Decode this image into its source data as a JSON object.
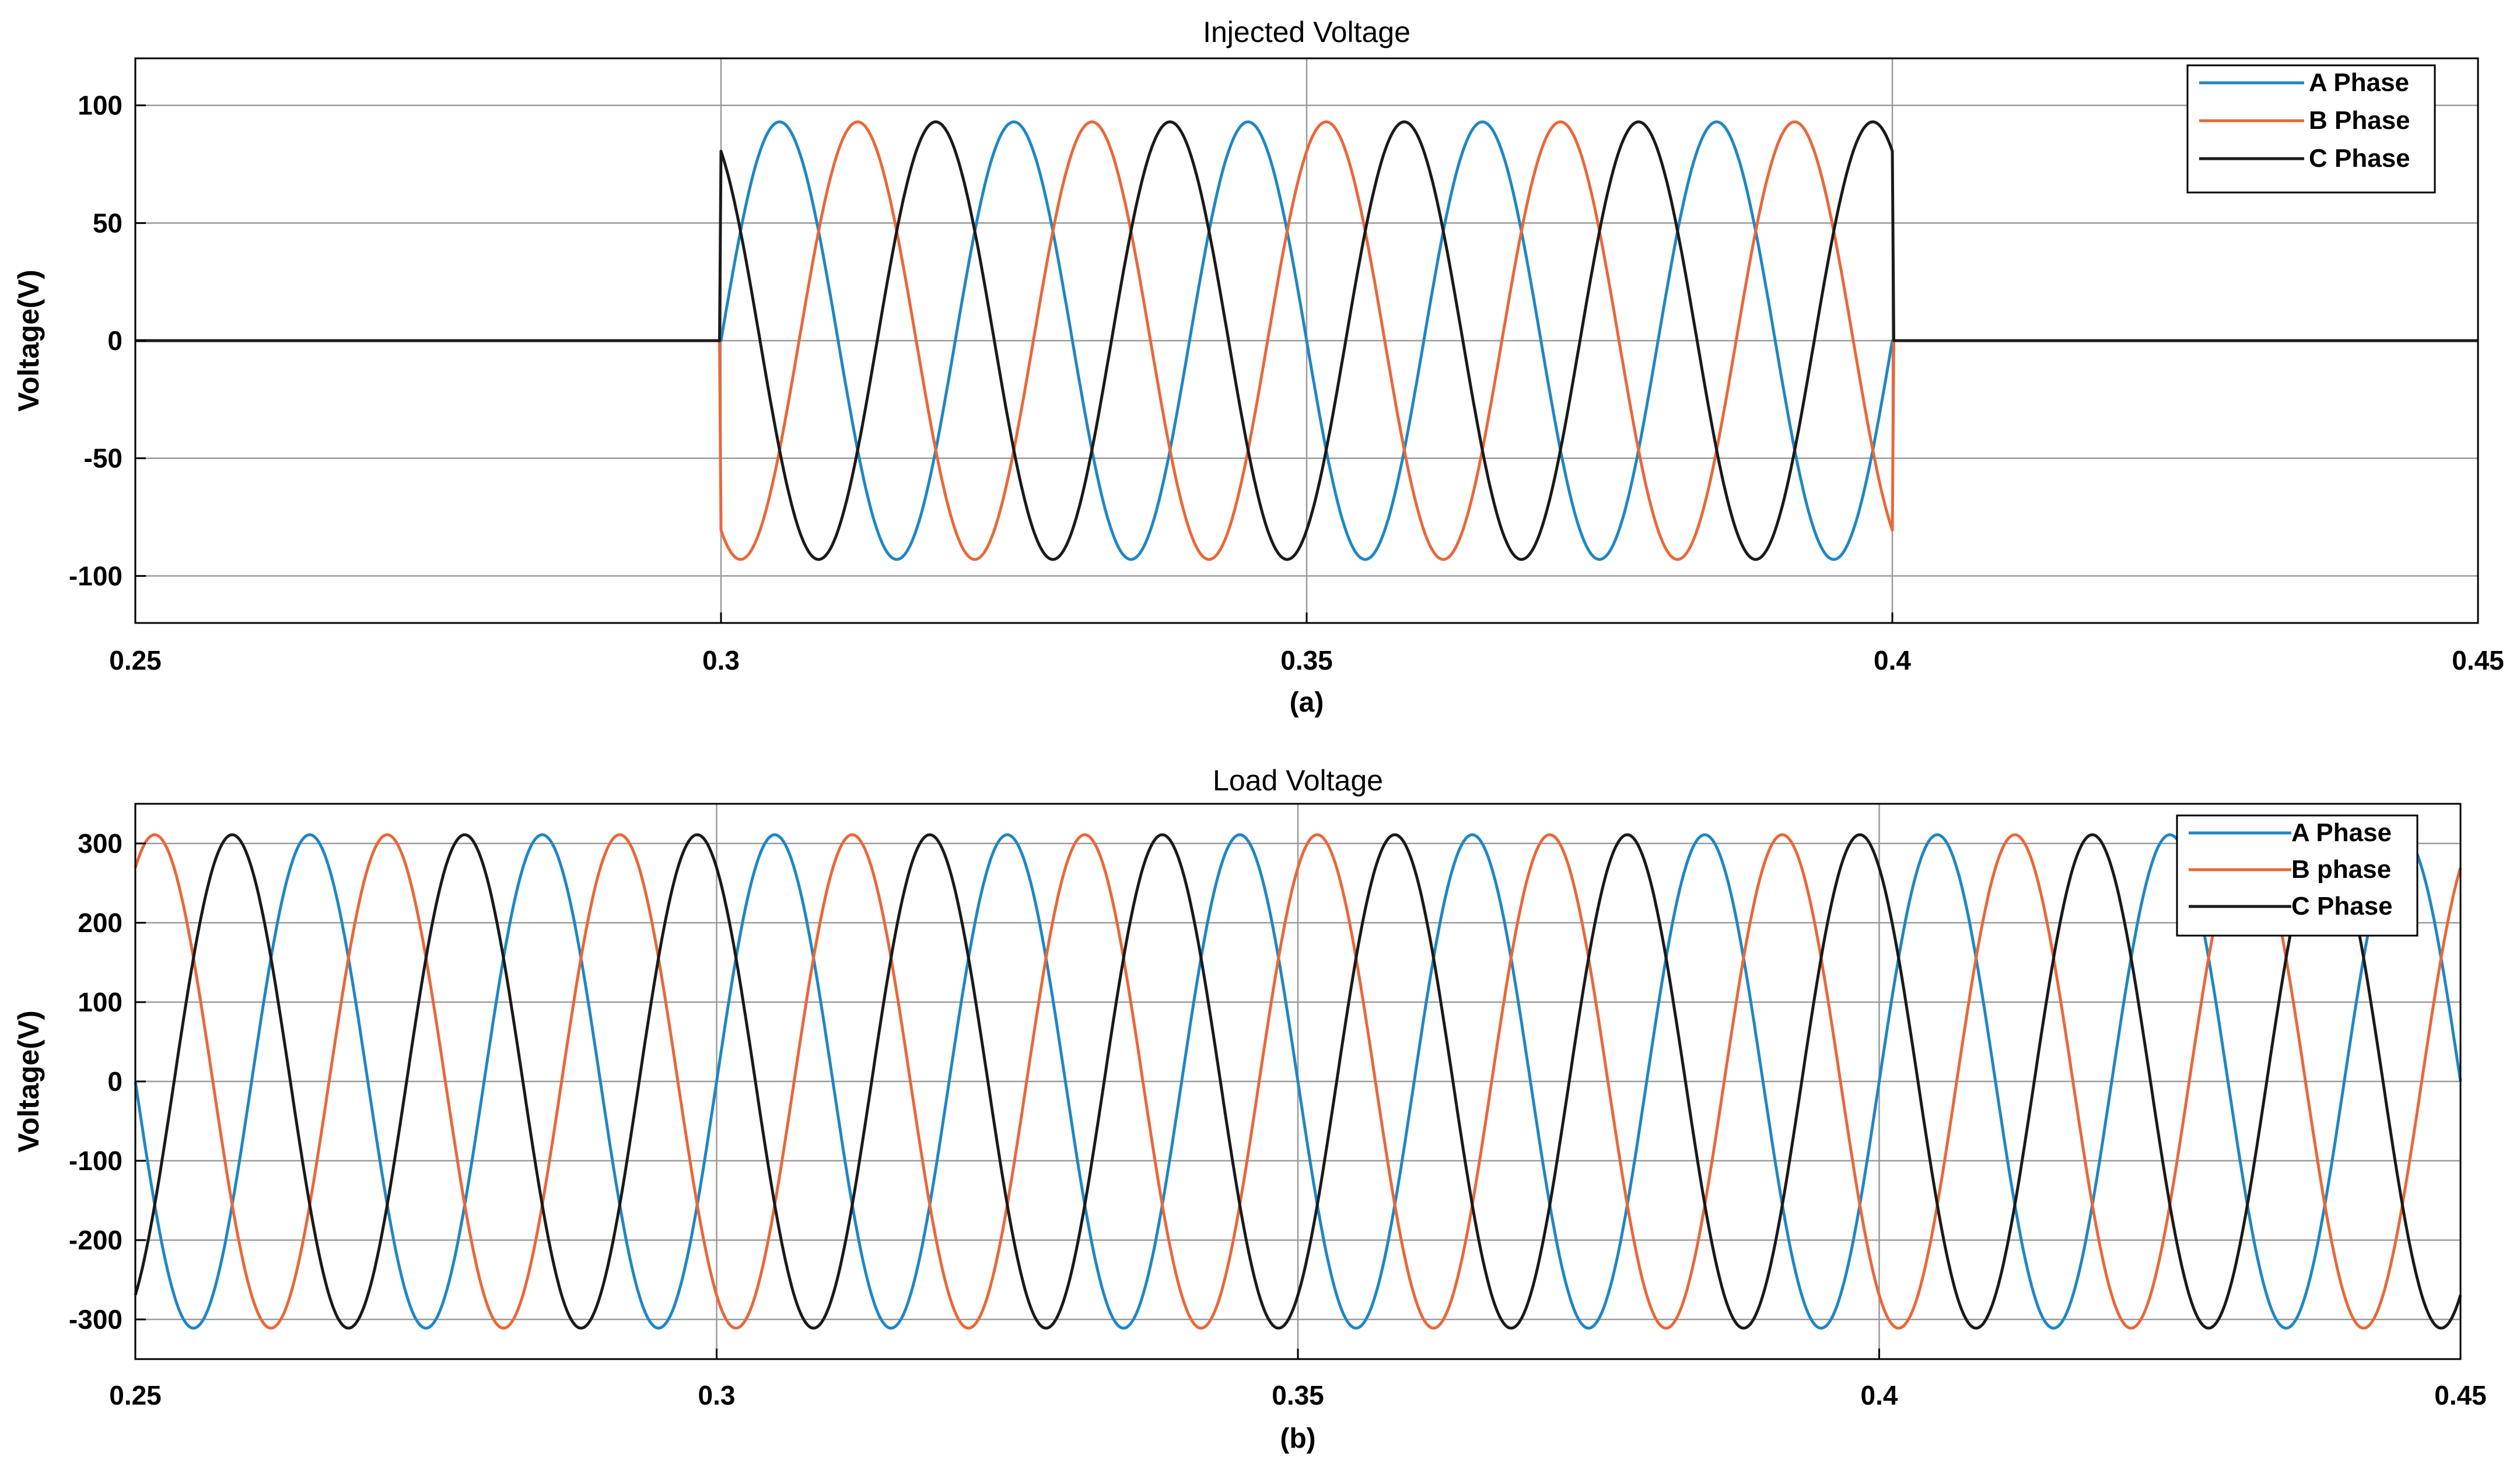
{
  "colors": {
    "a": "#1f86c5",
    "b": "#e8683a",
    "c": "#1a1a1a",
    "grid": "#9a9a9a",
    "axis": "#000000"
  },
  "chart_data": [
    {
      "type": "line",
      "title": "Injected Voltage",
      "caption": "(a)",
      "xlabel": "",
      "ylabel": "Voltage(V)",
      "xlim": [
        0.25,
        0.45
      ],
      "ylim": [
        -120,
        120
      ],
      "x_ticks": [
        0.25,
        0.3,
        0.35,
        0.4,
        0.45
      ],
      "x_tick_labels": [
        "0.25",
        "0.3",
        "0.35",
        "0.4",
        "0.45"
      ],
      "y_ticks": [
        100,
        50,
        0,
        -50,
        -100
      ],
      "y_tick_labels": [
        "100",
        "50",
        "0",
        "-50",
        "-100"
      ],
      "grid": true,
      "legend": "top-right",
      "series": [
        {
          "name": "A Phase",
          "color": "#1f86c5",
          "amplitude": 93,
          "frequency_hz": 50,
          "phase_deg": 0,
          "active_interval": [
            0.3,
            0.4
          ]
        },
        {
          "name": "B Phase",
          "color": "#e8683a",
          "amplitude": 93,
          "frequency_hz": 50,
          "phase_deg": -120,
          "active_interval": [
            0.3,
            0.4
          ]
        },
        {
          "name": "C Phase",
          "color": "#1a1a1a",
          "amplitude": 93,
          "frequency_hz": 50,
          "phase_deg": 120,
          "active_interval": [
            0.3,
            0.4
          ]
        }
      ]
    },
    {
      "type": "line",
      "title": "Load Voltage",
      "caption": "(b)",
      "xlabel": "",
      "ylabel": "Voltage(V)",
      "xlim": [
        0.25,
        0.45
      ],
      "ylim": [
        -350,
        350
      ],
      "x_ticks": [
        0.25,
        0.3,
        0.35,
        0.4,
        0.45
      ],
      "x_tick_labels": [
        "0.25",
        "0.3",
        "0.35",
        "0.4",
        "0.45"
      ],
      "y_ticks": [
        300,
        200,
        100,
        0,
        -100,
        -200,
        -300
      ],
      "y_tick_labels": [
        "300",
        "200",
        "100",
        "0",
        "-100",
        "-200",
        "-300"
      ],
      "grid": true,
      "legend": "top-right",
      "series": [
        {
          "name": "A Phase",
          "color": "#1f86c5",
          "amplitude": 311,
          "frequency_hz": 50,
          "phase_deg": 180
        },
        {
          "name": "B phase",
          "color": "#e8683a",
          "amplitude": 311,
          "frequency_hz": 50,
          "phase_deg": 60
        },
        {
          "name": "C Phase",
          "color": "#1a1a1a",
          "amplitude": 311,
          "frequency_hz": 50,
          "phase_deg": -60
        }
      ]
    }
  ]
}
